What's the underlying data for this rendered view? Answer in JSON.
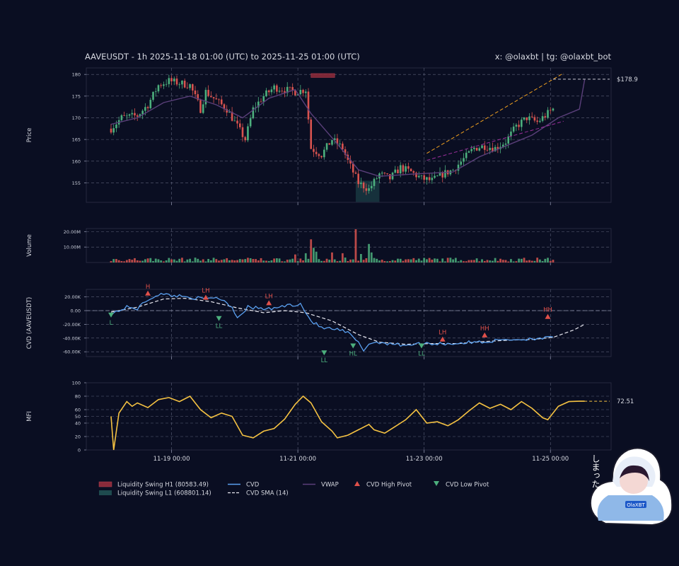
{
  "header": {
    "title": "AAVEUSDT - 1h 2025-11-18 01:00 (UTC) to 2025-11-25 01:00 (UTC)",
    "credit": "x: @olaxbt | tg: @olaxbt_bot"
  },
  "colors": {
    "background": "#0a0e22",
    "bull": "#4caf7d",
    "bear": "#d9534f",
    "vwap": "#5a3f7a",
    "cvd": "#5aa0f0",
    "cvd_sma": "#e8e8f0",
    "mfi": "#f5c242",
    "trend_upper": "#f0a020",
    "trend_lower": "#9b2f9b",
    "liq_high": "#8a2a3a",
    "liq_low": "#1e4a4e"
  },
  "mascot": {
    "text": "しまった！",
    "badge": "OlaXBT",
    "icon": "hooded-girl-mascot"
  },
  "chart_data": [
    {
      "panel": "price",
      "type": "candlestick",
      "ylabel": "Price",
      "ylim": [
        150.5,
        181.5
      ],
      "yticks": [
        155,
        160,
        165,
        170,
        175,
        180
      ],
      "n_bars": 169,
      "anchors": [
        [
          0,
          167.5
        ],
        [
          4,
          170
        ],
        [
          10,
          170.5
        ],
        [
          14,
          173
        ],
        [
          18,
          177.5
        ],
        [
          22,
          178.5
        ],
        [
          26,
          178
        ],
        [
          30,
          177.5
        ],
        [
          34,
          172
        ],
        [
          36,
          176
        ],
        [
          40,
          174
        ],
        [
          44,
          172
        ],
        [
          48,
          168
        ],
        [
          51,
          165
        ],
        [
          54,
          172
        ],
        [
          58,
          175
        ],
        [
          62,
          177
        ],
        [
          66,
          176.5
        ],
        [
          70,
          176
        ],
        [
          74,
          176.5
        ],
        [
          76,
          163
        ],
        [
          80,
          161.5
        ],
        [
          84,
          165
        ],
        [
          88,
          163
        ],
        [
          90,
          160
        ],
        [
          94,
          155
        ],
        [
          98,
          153.5
        ],
        [
          102,
          157
        ],
        [
          106,
          156
        ],
        [
          110,
          158.5
        ],
        [
          114,
          157.5
        ],
        [
          118,
          156
        ],
        [
          122,
          155.5
        ],
        [
          126,
          157
        ],
        [
          130,
          158
        ],
        [
          134,
          160.5
        ],
        [
          138,
          163
        ],
        [
          142,
          163.5
        ],
        [
          146,
          163
        ],
        [
          150,
          164.5
        ],
        [
          154,
          168
        ],
        [
          158,
          170
        ],
        [
          162,
          169
        ],
        [
          166,
          171
        ],
        [
          170,
          173
        ],
        [
          174,
          176
        ],
        [
          178,
          179.5
        ],
        [
          180,
          178.8
        ]
      ],
      "vwap": [
        [
          0,
          168.5
        ],
        [
          10,
          170
        ],
        [
          20,
          173.5
        ],
        [
          30,
          175
        ],
        [
          40,
          173
        ],
        [
          50,
          170
        ],
        [
          60,
          174.5
        ],
        [
          70,
          176.5
        ],
        [
          76,
          171
        ],
        [
          86,
          164
        ],
        [
          94,
          158
        ],
        [
          102,
          156.5
        ],
        [
          114,
          157
        ],
        [
          130,
          157.5
        ],
        [
          140,
          161
        ],
        [
          150,
          163.5
        ],
        [
          160,
          166
        ],
        [
          170,
          170
        ],
        [
          178,
          172
        ],
        [
          180,
          178.8
        ]
      ],
      "last_price_label": "$178.9",
      "last_price": 178.9,
      "liquidity_zones": [
        {
          "name": "Liquidity Swing H1",
          "start": 76,
          "end": 85,
          "low": 179.3,
          "high": 180.2
        },
        {
          "name": "Liquidity Swing L1",
          "start": 93,
          "end": 102,
          "low": 150.6,
          "high": 155.5
        }
      ],
      "trendlines": [
        {
          "from": [
            120,
            161.8
          ],
          "to": [
            172,
            180.3
          ],
          "style": "dashed"
        },
        {
          "from": [
            120,
            160.2
          ],
          "to": [
            172,
            169.2
          ],
          "style": "dashed"
        }
      ]
    },
    {
      "panel": "volume",
      "type": "bar",
      "ylabel": "Volume",
      "ylim": [
        0,
        22000000
      ],
      "yticks": [
        {
          "value": 10000000,
          "label": "10.00M"
        },
        {
          "value": 20000000,
          "label": "20.00M"
        }
      ],
      "spikes": [
        [
          76,
          15000000
        ],
        [
          77,
          9500000
        ],
        [
          78,
          7000000
        ],
        [
          84,
          6500000
        ],
        [
          88,
          6000000
        ],
        [
          93,
          23000000
        ],
        [
          98,
          12000000
        ],
        [
          99,
          6500000
        ],
        [
          95,
          5500000
        ],
        [
          70,
          5200000
        ],
        [
          74,
          6000000
        ]
      ]
    },
    {
      "panel": "cvd",
      "type": "line",
      "ylabel": "CVD (AAVEUSDT)",
      "ylim": [
        -67000,
        31000
      ],
      "yticks": [
        {
          "value": 20000,
          "label": "20.00K"
        },
        {
          "value": 0,
          "label": "0.00"
        },
        {
          "value": -20000,
          "label": "-20.00K"
        },
        {
          "value": -40000,
          "label": "-40.00K"
        },
        {
          "value": -60000,
          "label": "-60.00K"
        }
      ],
      "cvd": [
        [
          0,
          -5000
        ],
        [
          6,
          5000
        ],
        [
          10,
          3000
        ],
        [
          14,
          16000
        ],
        [
          18,
          24000
        ],
        [
          24,
          22000
        ],
        [
          30,
          20000
        ],
        [
          36,
          16000
        ],
        [
          40,
          20000
        ],
        [
          44,
          12000
        ],
        [
          46,
          5000
        ],
        [
          48,
          -10000
        ],
        [
          52,
          5000
        ],
        [
          60,
          2000
        ],
        [
          66,
          7000
        ],
        [
          70,
          9000
        ],
        [
          72,
          10000
        ],
        [
          76,
          -15000
        ],
        [
          80,
          -25000
        ],
        [
          86,
          -28000
        ],
        [
          90,
          -32000
        ],
        [
          94,
          -47000
        ],
        [
          96,
          -58000
        ],
        [
          98,
          -48000
        ],
        [
          102,
          -46000
        ],
        [
          110,
          -50000
        ],
        [
          120,
          -48000
        ],
        [
          130,
          -48000
        ],
        [
          138,
          -46000
        ],
        [
          144,
          -45000
        ],
        [
          150,
          -42000
        ],
        [
          156,
          -42000
        ],
        [
          162,
          -40000
        ],
        [
          168,
          -40000
        ],
        [
          170,
          -35000
        ],
        [
          174,
          -17000
        ],
        [
          177,
          -12000
        ],
        [
          180,
          -12000
        ]
      ],
      "cvd_sma": [
        [
          0,
          -2000
        ],
        [
          10,
          5000
        ],
        [
          20,
          17000
        ],
        [
          28,
          18000
        ],
        [
          38,
          13000
        ],
        [
          48,
          4000
        ],
        [
          58,
          -3000
        ],
        [
          66,
          0
        ],
        [
          74,
          -3000
        ],
        [
          84,
          -15000
        ],
        [
          94,
          -35000
        ],
        [
          102,
          -46000
        ],
        [
          112,
          -49000
        ],
        [
          122,
          -48000
        ],
        [
          132,
          -48000
        ],
        [
          142,
          -45000
        ],
        [
          152,
          -43000
        ],
        [
          160,
          -42000
        ],
        [
          168,
          -39000
        ],
        [
          176,
          -28000
        ],
        [
          180,
          -20000
        ]
      ],
      "pivots": [
        {
          "x": 0,
          "y": -5000,
          "label": "L",
          "kind": "low"
        },
        {
          "x": 14,
          "y": 24000,
          "label": "H",
          "kind": "high"
        },
        {
          "x": 36,
          "y": 18000,
          "label": "LH",
          "kind": "high"
        },
        {
          "x": 41,
          "y": -10000,
          "label": "LL",
          "kind": "low"
        },
        {
          "x": 60,
          "y": 10000,
          "label": "LH",
          "kind": "high"
        },
        {
          "x": 81,
          "y": -60000,
          "label": "LL",
          "kind": "low"
        },
        {
          "x": 92,
          "y": -50000,
          "label": "HL",
          "kind": "low"
        },
        {
          "x": 118,
          "y": -50000,
          "label": "LL",
          "kind": "low"
        },
        {
          "x": 126,
          "y": -43000,
          "label": "LH",
          "kind": "high"
        },
        {
          "x": 142,
          "y": -37000,
          "label": "HH",
          "kind": "high"
        },
        {
          "x": 166,
          "y": -10000,
          "label": "HH",
          "kind": "high"
        }
      ]
    },
    {
      "panel": "mfi",
      "type": "line",
      "ylabel": "MFI",
      "ylim": [
        0,
        100
      ],
      "yticks": [
        0,
        20,
        40,
        50,
        60,
        80,
        100
      ],
      "last_value_label": "72.51",
      "last_value": 72.51,
      "values": [
        [
          0,
          50
        ],
        [
          1,
          0
        ],
        [
          3,
          55
        ],
        [
          6,
          72
        ],
        [
          8,
          65
        ],
        [
          10,
          70
        ],
        [
          14,
          63
        ],
        [
          18,
          75
        ],
        [
          22,
          78
        ],
        [
          26,
          72
        ],
        [
          30,
          80
        ],
        [
          34,
          60
        ],
        [
          38,
          48
        ],
        [
          42,
          55
        ],
        [
          46,
          50
        ],
        [
          50,
          22
        ],
        [
          54,
          18
        ],
        [
          58,
          28
        ],
        [
          62,
          32
        ],
        [
          66,
          46
        ],
        [
          70,
          68
        ],
        [
          73,
          80
        ],
        [
          76,
          70
        ],
        [
          80,
          42
        ],
        [
          84,
          28
        ],
        [
          86,
          18
        ],
        [
          90,
          22
        ],
        [
          94,
          30
        ],
        [
          98,
          38
        ],
        [
          100,
          30
        ],
        [
          104,
          25
        ],
        [
          108,
          35
        ],
        [
          112,
          45
        ],
        [
          116,
          60
        ],
        [
          120,
          40
        ],
        [
          124,
          42
        ],
        [
          128,
          36
        ],
        [
          132,
          45
        ],
        [
          136,
          58
        ],
        [
          140,
          70
        ],
        [
          144,
          62
        ],
        [
          148,
          68
        ],
        [
          152,
          60
        ],
        [
          156,
          72
        ],
        [
          160,
          62
        ],
        [
          164,
          48
        ],
        [
          166,
          45
        ],
        [
          168,
          55
        ],
        [
          170,
          65
        ],
        [
          174,
          72
        ],
        [
          178,
          72.5
        ],
        [
          180,
          72.5
        ]
      ]
    }
  ],
  "x_axis": {
    "ticks": [
      {
        "bar": 23,
        "label": "11-19 00:00"
      },
      {
        "bar": 71,
        "label": "11-21 00:00"
      },
      {
        "bar": 119,
        "label": "11-23 00:00"
      },
      {
        "bar": 167,
        "label": "11-25 00:00"
      }
    ]
  },
  "legend": {
    "items": [
      {
        "label": "Liquidity Swing H1 (80583.49)",
        "kind": "patch",
        "color": "#8a2a3a"
      },
      {
        "label": "Liquidity Swing L1 (608801.14)",
        "kind": "patch",
        "color": "#1e4a4e"
      },
      {
        "label": "CVD",
        "kind": "line",
        "color": "#5aa0f0"
      },
      {
        "label": "CVD SMA (14)",
        "kind": "dash",
        "color": "#e8e8f0"
      },
      {
        "label": "VWAP",
        "kind": "line",
        "color": "#5a3f7a"
      },
      {
        "label": "CVD High Pivot",
        "kind": "tri-up",
        "color": "#e0504a"
      },
      {
        "label": "CVD Low Pivot",
        "kind": "tri-down",
        "color": "#4caf7d"
      }
    ]
  }
}
